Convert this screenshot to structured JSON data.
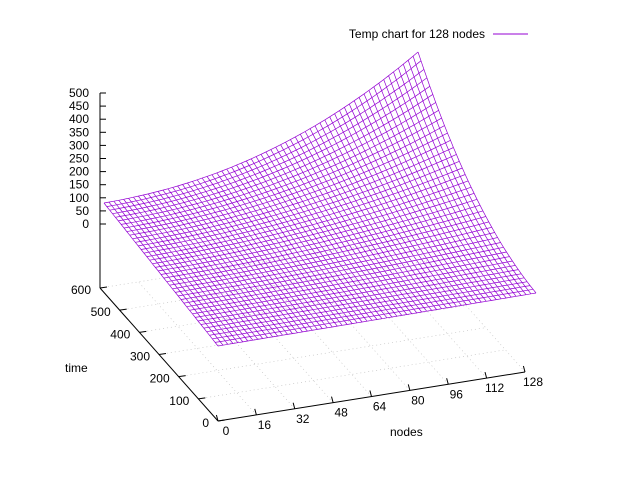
{
  "chart_data": {
    "type": "surface",
    "title": "",
    "legend": {
      "label": "Temp chart for 128 nodes",
      "placement": "top-right",
      "color": "#9400d3"
    },
    "xlabel": "nodes",
    "ylabel": "time",
    "zlabel": "",
    "xlim": [
      0,
      128
    ],
    "ylim": [
      0,
      600
    ],
    "zlim": [
      0,
      500
    ],
    "x_ticks": [
      "0",
      "16",
      "32",
      "48",
      "64",
      "80",
      "96",
      "112",
      "128"
    ],
    "y_ticks": [
      "0",
      "100",
      "200",
      "300",
      "400",
      "500",
      "600"
    ],
    "z_ticks": [
      "0",
      "50",
      "100",
      "150",
      "200",
      "250",
      "300",
      "350",
      "400",
      "450",
      "500"
    ],
    "grid": true,
    "series": [
      {
        "name": "Temp chart for 128 nodes",
        "color": "#9400d3",
        "x_range": [
          0,
          128
        ],
        "y_range": [
          0,
          600
        ],
        "corner_values": [
          {
            "x": 0,
            "y": 0,
            "z": 10
          },
          {
            "x": 128,
            "y": 0,
            "z": 10
          },
          {
            "x": 0,
            "y": 600,
            "z": 80
          },
          {
            "x": 128,
            "y": 600,
            "z": 480
          }
        ]
      }
    ]
  }
}
